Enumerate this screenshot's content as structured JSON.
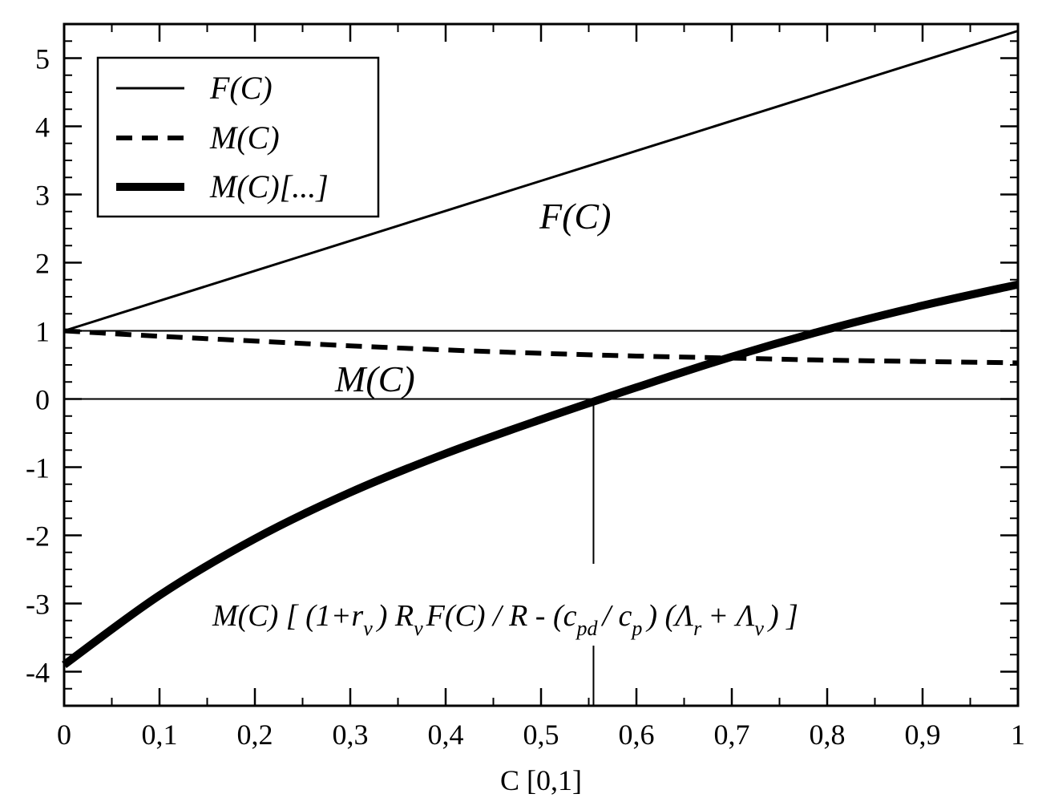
{
  "chart_data": {
    "type": "line",
    "title": "",
    "xlabel": "C [0,1]",
    "ylabel": "",
    "xlim": [
      0,
      1
    ],
    "ylim": [
      -4.5,
      5.5
    ],
    "x_ticks": [
      0,
      0.1,
      0.2,
      0.3,
      0.4,
      0.5,
      0.6,
      0.7,
      0.8,
      0.9,
      1
    ],
    "x_tick_labels": [
      "0",
      "0,1",
      "0,2",
      "0,3",
      "0,4",
      "0,5",
      "0,6",
      "0,7",
      "0,8",
      "0,9",
      "1"
    ],
    "y_ticks": [
      -4,
      -3,
      -2,
      -1,
      0,
      1,
      2,
      3,
      4,
      5
    ],
    "y_tick_labels": [
      "-4",
      "-3",
      "-2",
      "-1",
      "0",
      "1",
      "2",
      "3",
      "4",
      "5"
    ],
    "grid": false,
    "legend_position": "top-left",
    "series": [
      {
        "name": "F(C)",
        "style": "thin-solid",
        "x": [
          0,
          0.1,
          0.2,
          0.3,
          0.4,
          0.5,
          0.6,
          0.7,
          0.8,
          0.9,
          1
        ],
        "y": [
          1.0,
          1.44,
          1.88,
          2.32,
          2.76,
          3.2,
          3.64,
          4.08,
          4.52,
          4.96,
          5.4
        ]
      },
      {
        "name": "M(C)",
        "style": "dashed",
        "x": [
          0,
          0.1,
          0.2,
          0.3,
          0.4,
          0.5,
          0.6,
          0.7,
          0.8,
          0.9,
          1
        ],
        "y": [
          1.0,
          0.92,
          0.85,
          0.78,
          0.72,
          0.67,
          0.63,
          0.6,
          0.57,
          0.55,
          0.53
        ]
      },
      {
        "name": "M(C)[...]",
        "style": "thick-solid",
        "x": [
          0,
          0.1,
          0.2,
          0.3,
          0.4,
          0.5,
          0.6,
          0.7,
          0.8,
          0.9,
          1
        ],
        "y": [
          -3.9,
          -2.88,
          -2.05,
          -1.37,
          -0.8,
          -0.3,
          0.17,
          0.62,
          1.02,
          1.37,
          1.68
        ]
      }
    ],
    "reference_lines": {
      "horizontal": [
        0,
        1
      ],
      "vertical_x": 0.555
    },
    "annotations": {
      "f_label": "F(C)",
      "m_label": "M(C)",
      "formula": {
        "p1": "M(C) [ (1+r",
        "s1": "v",
        "p2": ") R",
        "s2": "v",
        "p3": "F(C) / R - (c",
        "s3": "pd",
        "p4": "/ c",
        "s4": "p",
        "p5": ") (Λ",
        "s5": "r",
        "p6": "+ Λ",
        "s6": "v",
        "p7": ") ]"
      }
    },
    "colors": {
      "lines": "#000000",
      "background": "#ffffff"
    }
  }
}
